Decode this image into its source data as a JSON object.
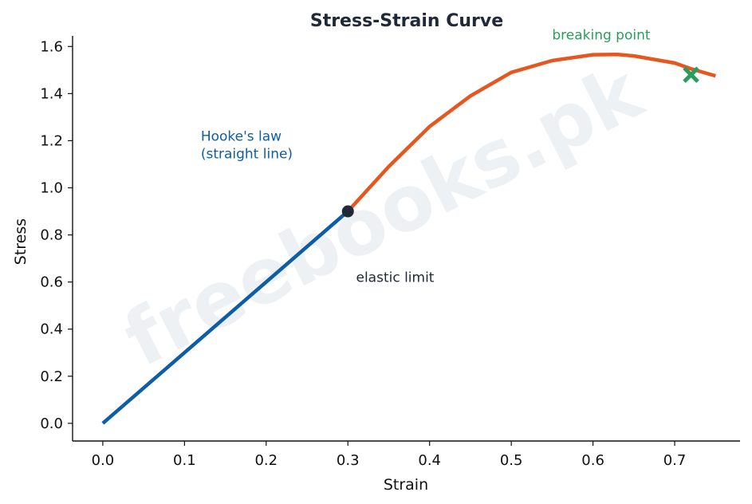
{
  "chart_data": {
    "type": "line",
    "title": "Stress-Strain Curve",
    "xlabel": "Strain",
    "ylabel": "Stress",
    "xlim": [
      -0.037,
      0.78
    ],
    "ylim": [
      -0.075,
      1.645
    ],
    "xticks": [
      0.0,
      0.1,
      0.2,
      0.3,
      0.4,
      0.5,
      0.6,
      0.7
    ],
    "yticks": [
      0.0,
      0.2,
      0.4,
      0.6,
      0.8,
      1.0,
      1.2,
      1.4,
      1.6
    ],
    "x_tick_labels": [
      "0.0",
      "0.1",
      "0.2",
      "0.3",
      "0.4",
      "0.5",
      "0.6",
      "0.7"
    ],
    "y_tick_labels": [
      "0.0",
      "0.2",
      "0.4",
      "0.6",
      "0.8",
      "1.0",
      "1.2",
      "1.4",
      "1.6"
    ],
    "grid": false,
    "series": [
      {
        "color": "#0d5ea6",
        "x": [
          0.0,
          0.3
        ],
        "y": [
          0.0,
          0.9
        ]
      },
      {
        "color": "#e5571e",
        "x": [
          0.3,
          0.35,
          0.4,
          0.45,
          0.5,
          0.55,
          0.6,
          0.63,
          0.65,
          0.7,
          0.72,
          0.75
        ],
        "y": [
          0.9,
          1.09,
          1.26,
          1.39,
          1.49,
          1.54,
          1.565,
          1.566,
          1.56,
          1.53,
          1.505,
          1.475
        ]
      }
    ],
    "markers": [
      {
        "type": "point",
        "x": 0.3,
        "y": 0.9,
        "color": "#1f2937"
      },
      {
        "type": "x",
        "x": 0.72,
        "y": 1.48,
        "color": "#2a9d5c"
      }
    ],
    "annotations": [
      {
        "text": "Hooke's law\n(straight line)",
        "x": 0.12,
        "y": 1.2,
        "color": "#0d5ea6"
      },
      {
        "text": "elastic limit",
        "x": 0.31,
        "y": 0.6,
        "color": "#1f2937"
      },
      {
        "text": "breaking point",
        "x": 0.55,
        "y": 1.63,
        "color": "#2a9d5c"
      }
    ],
    "watermark": "freebooks.pk"
  }
}
